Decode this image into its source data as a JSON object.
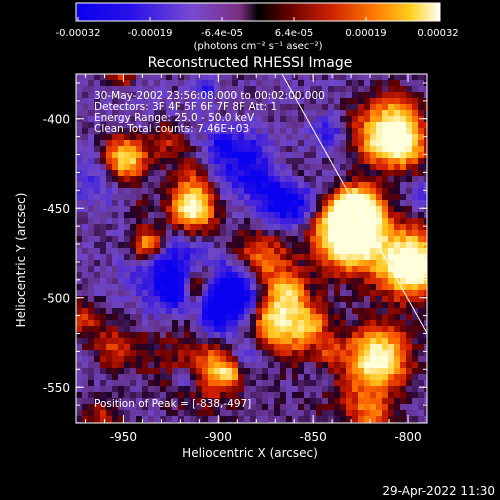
{
  "colorbar": {
    "tick_labels": [
      "-0.00032",
      "-0.00019",
      "-6.4e-05",
      "6.4e-05",
      "0.00019",
      "0.00032"
    ],
    "units_label": "(photons cm⁻² s⁻¹ asec⁻²)",
    "range": [
      -0.00032,
      0.00032
    ]
  },
  "plot": {
    "title": "Reconstructed RHESSI Image",
    "xlabel": "Heliocentric X (arcsec)",
    "ylabel": "Heliocentric Y (arcsec)",
    "xticks": [
      "-950",
      "-900",
      "-850",
      "-800"
    ],
    "yticks": [
      "-400",
      "-450",
      "-500",
      "-550"
    ],
    "xlim": [
      -975,
      -790
    ],
    "ylim": [
      -570,
      -375
    ],
    "annotations": {
      "time_range": "30-May-2002 23:56:08.000 to 00:02:00.000",
      "detectors": "Detectors: 3F 4F 5F 6F 7F 8F  Att: 1",
      "energy_range": "Energy Range: 25.0 - 50.0 keV",
      "method_counts": "Clean     Total counts: 7.46E+03",
      "peak_position": "Position of Peak = [-838,-497]"
    }
  },
  "footer": {
    "timestamp": "29-Apr-2022 11:30"
  },
  "colors": {
    "background": "#000000",
    "text": "#ffffff",
    "limb_line": "#ffffff"
  }
}
